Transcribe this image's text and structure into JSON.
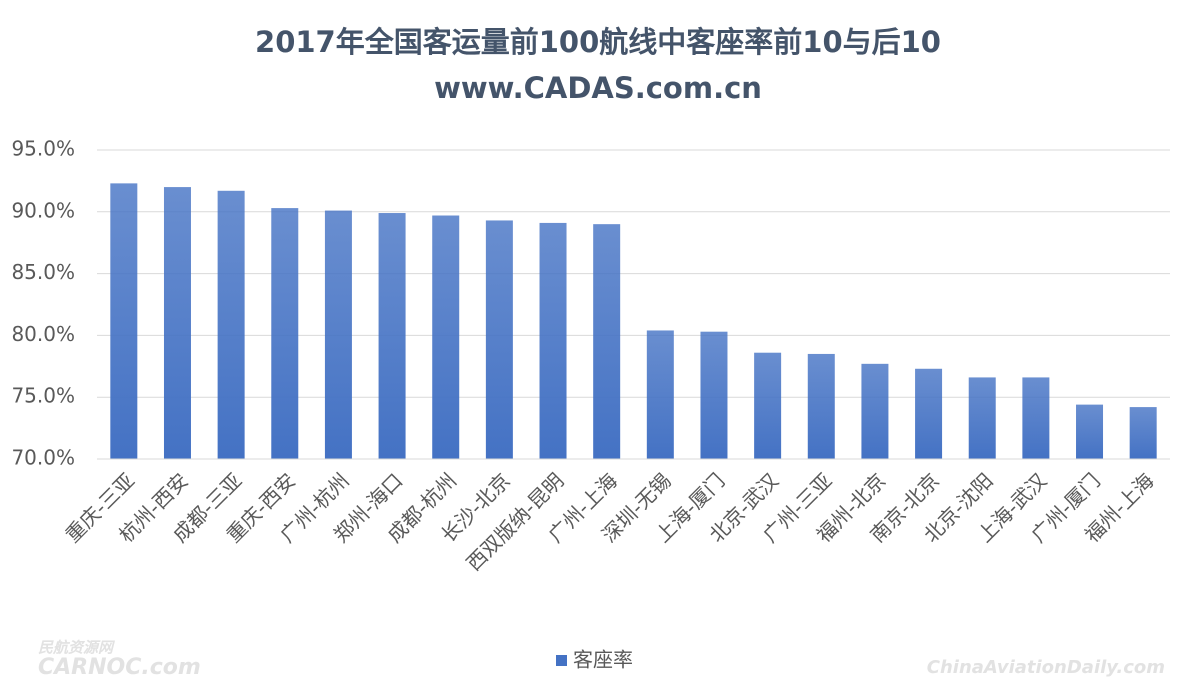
{
  "chart_data": {
    "type": "bar",
    "title": "2017年全国客运量前100航线中客座率前10与后10",
    "subtitle": "www.CADAS.com.cn",
    "categories": [
      "重庆-三亚",
      "杭州-西安",
      "成都-三亚",
      "重庆-西安",
      "广州-杭州",
      "郑州-海口",
      "成都-杭州",
      "长沙-北京",
      "西双版纳-昆明",
      "广州-上海",
      "深圳-无锡",
      "上海-厦门",
      "北京-武汉",
      "广州-三亚",
      "福州-北京",
      "南京-北京",
      "北京-沈阳",
      "上海-武汉",
      "广州-厦门",
      "福州-上海"
    ],
    "series": [
      {
        "name": "客座率",
        "color": "#4472c4",
        "values": [
          92.3,
          92.0,
          91.7,
          90.3,
          90.1,
          89.9,
          89.7,
          89.3,
          89.1,
          89.0,
          80.4,
          80.3,
          78.6,
          78.5,
          77.7,
          77.3,
          76.6,
          76.6,
          74.4,
          74.2
        ]
      }
    ],
    "ylim": [
      70,
      95
    ],
    "yticks": [
      {
        "value": 70,
        "label": "70.0%"
      },
      {
        "value": 75,
        "label": "75.0%"
      },
      {
        "value": 80,
        "label": "80.0%"
      },
      {
        "value": 85,
        "label": "85.0%"
      },
      {
        "value": 90,
        "label": "90.0%"
      },
      {
        "value": 95,
        "label": "95.0%"
      }
    ],
    "grid": true,
    "legend": "bottom",
    "watermarks": [
      "民航资源网",
      "CARNOC.com",
      "ChinaAviationDaily.com"
    ]
  }
}
